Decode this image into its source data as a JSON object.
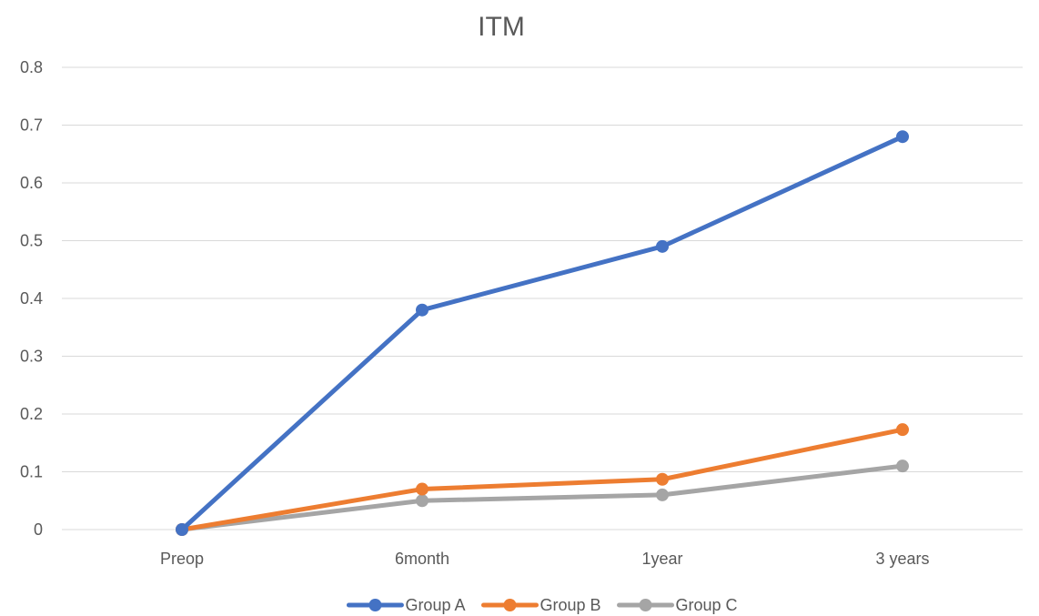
{
  "chart_data": {
    "type": "line",
    "title": "ITM",
    "xlabel": "",
    "ylabel": "",
    "categories": [
      "Preop",
      "6month",
      "1year",
      "3 years"
    ],
    "y_ticks": [
      "0",
      "0.1",
      "0.2",
      "0.3",
      "0.4",
      "0.5",
      "0.6",
      "0.7",
      "0.8"
    ],
    "ylim": [
      0,
      0.8
    ],
    "grid": true,
    "legend_position": "bottom",
    "series": [
      {
        "name": "Group A",
        "color": "#4472C4",
        "values": [
          0,
          0.38,
          0.49,
          0.68
        ]
      },
      {
        "name": "Group B",
        "color": "#ED7D31",
        "values": [
          0,
          0.07,
          0.087,
          0.173
        ]
      },
      {
        "name": "Group C",
        "color": "#A5A5A5",
        "values": [
          0,
          0.05,
          0.06,
          0.11
        ]
      }
    ]
  }
}
